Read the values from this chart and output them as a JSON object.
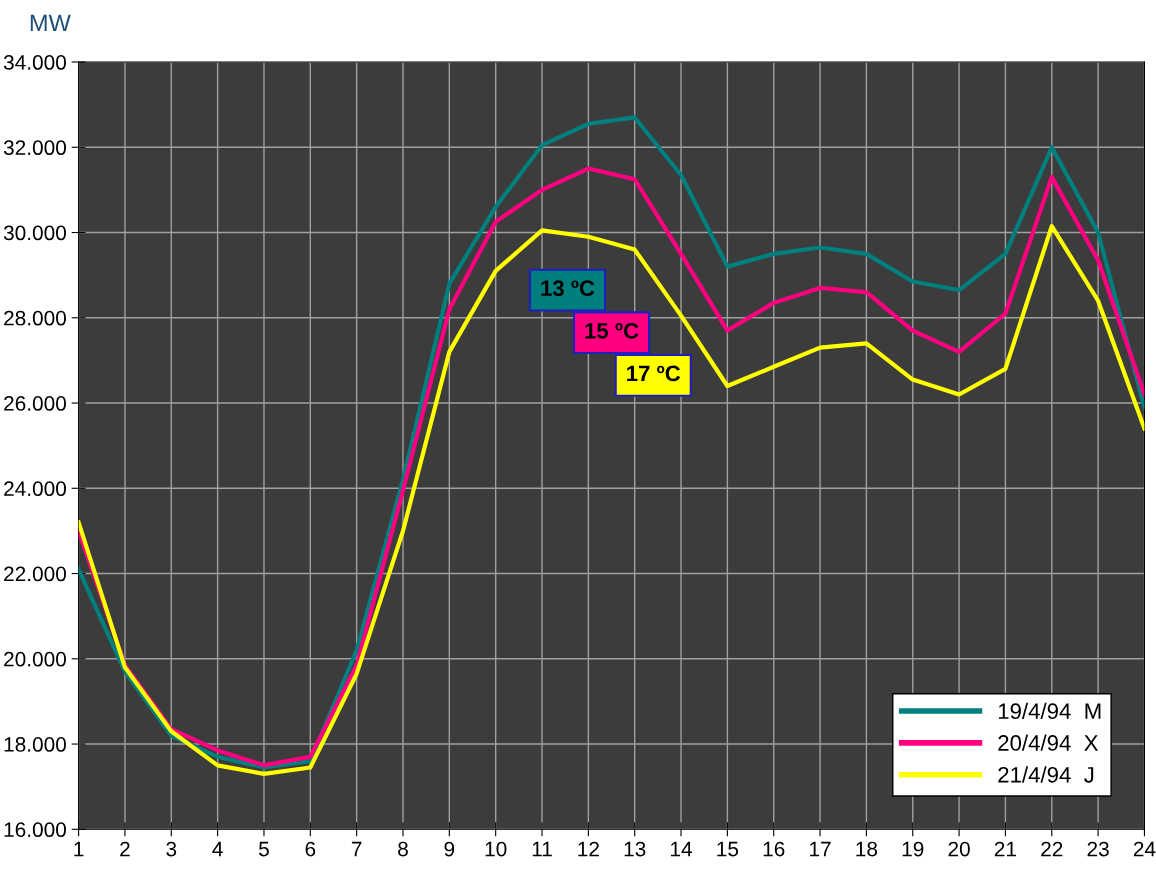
{
  "chart_data": {
    "type": "line",
    "ylabel": "MW",
    "categories": [
      "1",
      "2",
      "3",
      "4",
      "5",
      "6",
      "7",
      "8",
      "9",
      "10",
      "11",
      "12",
      "13",
      "14",
      "15",
      "16",
      "17",
      "18",
      "19",
      "20",
      "21",
      "22",
      "23",
      "24"
    ],
    "series": [
      {
        "name": "19/4/94  M",
        "color": "#007f7f",
        "values": [
          22100,
          19700,
          18200,
          17700,
          17450,
          17600,
          20200,
          24200,
          28800,
          30600,
          32050,
          32550,
          32700,
          31350,
          29200,
          29500,
          29650,
          29500,
          28850,
          28650,
          29500,
          32000,
          30000,
          25900
        ]
      },
      {
        "name": "20/4/94  X",
        "color": "#ff0080",
        "values": [
          23000,
          19850,
          18350,
          17850,
          17500,
          17700,
          19850,
          23950,
          28200,
          30250,
          31000,
          31500,
          31250,
          29500,
          27700,
          28350,
          28700,
          28600,
          27700,
          27200,
          28100,
          31300,
          29350,
          26200
        ]
      },
      {
        "name": "21/4/94  J",
        "color": "#ffff00",
        "values": [
          23200,
          19800,
          18300,
          17500,
          17300,
          17450,
          19650,
          23000,
          27200,
          29100,
          30050,
          29900,
          29600,
          28050,
          26400,
          26850,
          27300,
          27400,
          26550,
          26200,
          26800,
          30150,
          28400,
          25400
        ]
      }
    ],
    "ylim": [
      16000,
      34000
    ],
    "yticks": [
      {
        "value": 16000,
        "label": "16.000"
      },
      {
        "value": 18000,
        "label": "18.000"
      },
      {
        "value": 20000,
        "label": "20.000"
      },
      {
        "value": 22000,
        "label": "22.000"
      },
      {
        "value": 24000,
        "label": "24.000"
      },
      {
        "value": 26000,
        "label": "26.000"
      },
      {
        "value": 28000,
        "label": "28.000"
      },
      {
        "value": 30000,
        "label": "30.000"
      },
      {
        "value": 32000,
        "label": "32.000"
      },
      {
        "value": 34000,
        "label": "34.000"
      }
    ],
    "annotations": [
      "13 ºC",
      "15 ºC",
      "17 ºC"
    ],
    "grid": true,
    "legend": "bottom right",
    "marker": "none",
    "line_style": "solid"
  }
}
